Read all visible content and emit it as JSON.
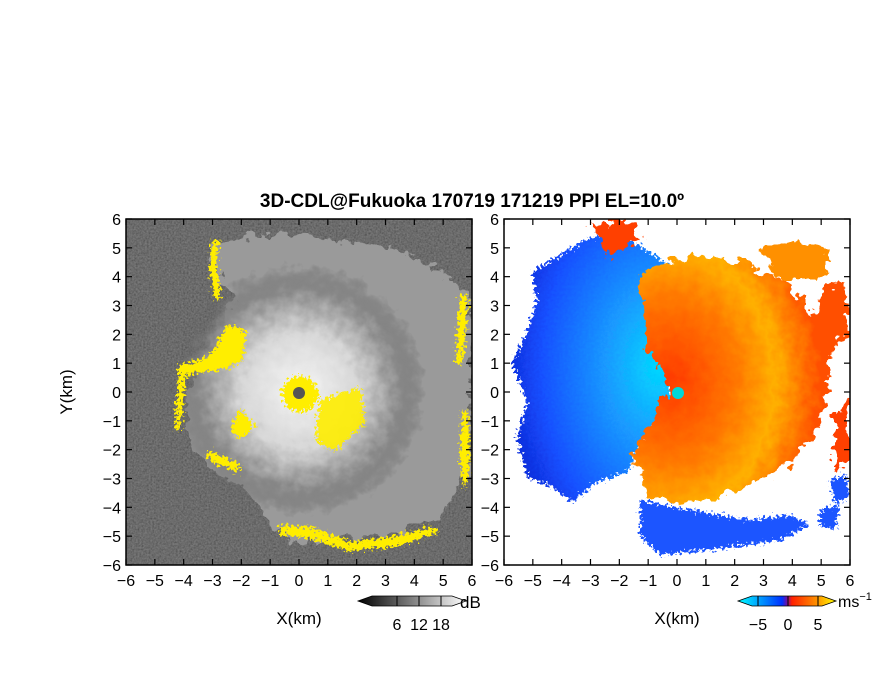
{
  "figure": {
    "title": "3D-CDL@Fukuoka 170719 171219 PPI EL=10.0º"
  },
  "chart_data": [
    {
      "type": "heatmap",
      "panel": "left",
      "quantity_unit": "dB",
      "xlabel": "X(km)",
      "ylabel": "Y(km)",
      "xlim": [
        -6,
        6
      ],
      "ylim": [
        -6,
        6
      ],
      "xticks": [
        "−6",
        "−5",
        "−4",
        "−3",
        "−2",
        "−1",
        "0",
        "1",
        "2",
        "3",
        "4",
        "5",
        "6"
      ],
      "yticks": [
        "6",
        "5",
        "4",
        "3",
        "2",
        "1",
        "0",
        "−1",
        "−2",
        "−3",
        "−4",
        "−5",
        "−6"
      ],
      "colorbar": {
        "ticks": [
          "6",
          "12",
          "18"
        ],
        "unit": "dB",
        "colormap": "black-to-white (grayscale)"
      },
      "highlight_color": "#ffee00",
      "background_color": "#2a2a2a"
    },
    {
      "type": "heatmap",
      "panel": "right",
      "quantity_unit": "ms⁻¹",
      "xlabel": "X(km)",
      "ylabel": "",
      "xlim": [
        -6,
        6
      ],
      "ylim": [
        -6,
        6
      ],
      "xticks": [
        "−6",
        "−5",
        "−4",
        "−3",
        "−2",
        "−1",
        "0",
        "1",
        "2",
        "3",
        "4",
        "5",
        "6"
      ],
      "yticks": [
        "6",
        "5",
        "4",
        "3",
        "2",
        "1",
        "0",
        "−1",
        "−2",
        "−3",
        "−4",
        "−5",
        "−6"
      ],
      "colorbar": {
        "ticks": [
          "−5",
          "0",
          "5"
        ],
        "unit": "ms",
        "unit_exp": "−1",
        "colormap": "cyan-blue-red-orange-yellow (diverging)"
      },
      "negative_color": "#1560ff",
      "positive_color": "#ff4a00"
    }
  ]
}
